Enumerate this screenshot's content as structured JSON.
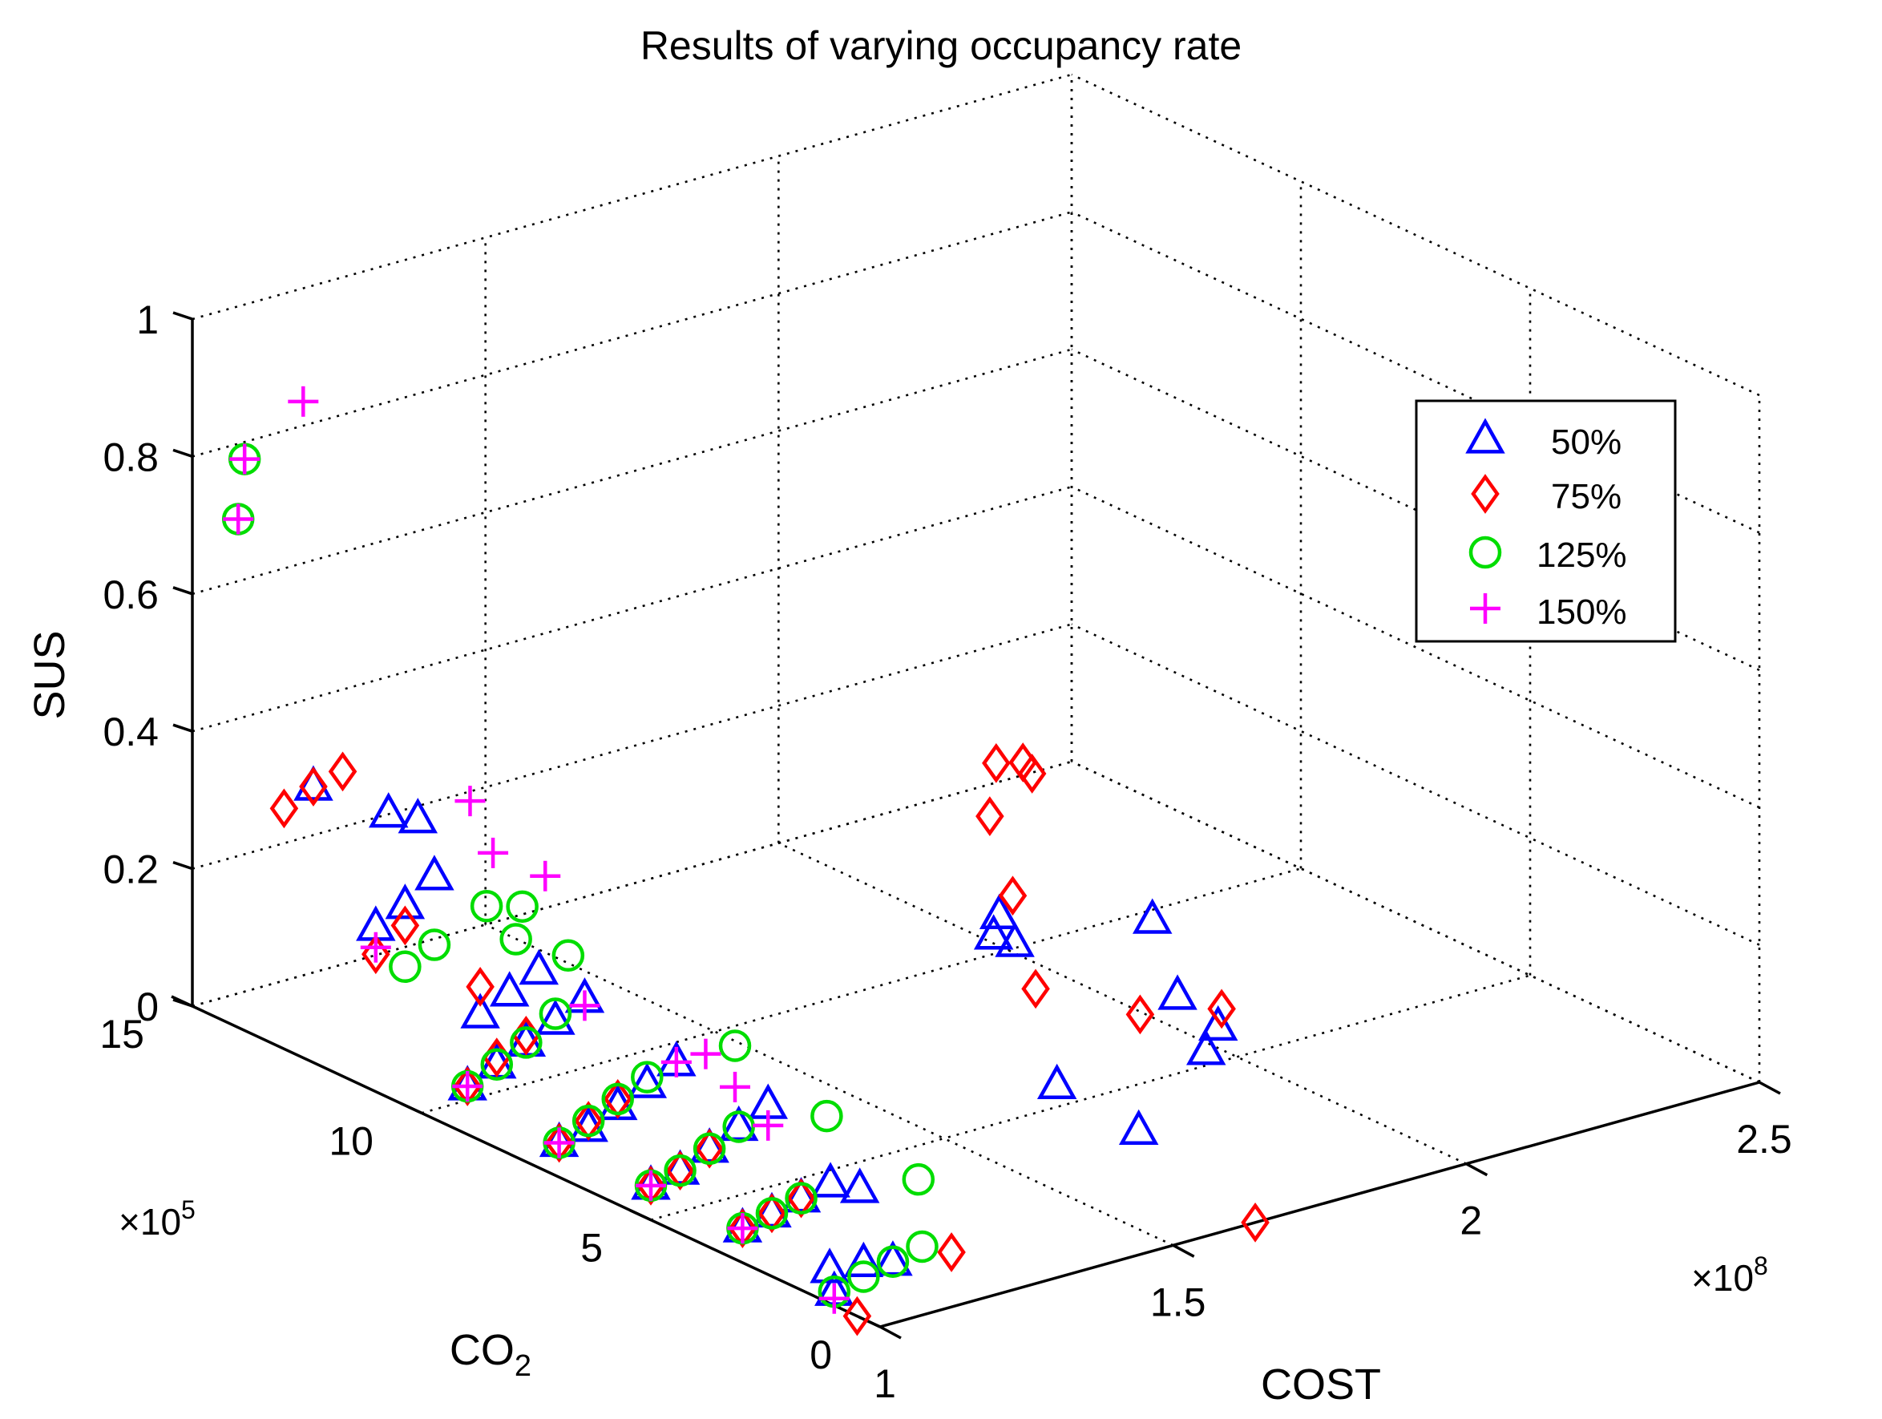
{
  "chart_data": {
    "type": "scatter",
    "title": "Results of varying occupancy rate",
    "xlabel": "COST",
    "ylabel": "CO",
    "ylabel_subscript": "2",
    "zlabel": "SUS",
    "xlim": [
      1,
      2.5
    ],
    "ylim": [
      0,
      15
    ],
    "zlim": [
      0,
      1
    ],
    "x_ticks": [
      "1",
      "1.5",
      "2",
      "2.5"
    ],
    "y_ticks": [
      "0",
      "5",
      "10",
      "15"
    ],
    "z_ticks": [
      "0",
      "0.2",
      "0.4",
      "0.6",
      "0.8",
      "1"
    ],
    "x_multiplier": "×10",
    "x_multiplier_exp": "8",
    "y_multiplier": "×10",
    "y_multiplier_exp": "5",
    "grid": true,
    "legend_position": "top-right",
    "series": [
      {
        "name": "50%",
        "marker": "triangle",
        "color": "#0000ff",
        "points": [
          [
            1.64,
            0.81,
            0.26
          ],
          [
            1.62,
            1.44,
            0.29
          ],
          [
            1.65,
            1.2,
            0.21
          ],
          [
            1.6,
            2.03,
            0.08
          ],
          [
            1.57,
            3.43,
            0.11
          ],
          [
            1.61,
            1.86,
            0.39
          ],
          [
            1.52,
            3.71,
            0.32
          ],
          [
            1.52,
            4.05,
            0.35
          ],
          [
            1.53,
            4.3,
            0.31
          ],
          [
            1.0,
            1.0,
            0.02
          ],
          [
            1.0,
            1.1,
            0.05
          ],
          [
            1.05,
            1.0,
            0.05
          ],
          [
            1.1,
            1.0,
            0.04
          ],
          [
            1.0,
            3.0,
            0.05
          ],
          [
            1.05,
            3.0,
            0.06
          ],
          [
            1.1,
            3.0,
            0.07
          ],
          [
            1.15,
            3.0,
            0.08
          ],
          [
            1.2,
            3.0,
            0.06
          ],
          [
            1.0,
            5.0,
            0.05
          ],
          [
            1.05,
            5.0,
            0.06
          ],
          [
            1.1,
            5.0,
            0.08
          ],
          [
            1.15,
            5.0,
            0.1
          ],
          [
            1.2,
            5.0,
            0.12
          ],
          [
            1.0,
            7.0,
            0.05
          ],
          [
            1.05,
            7.0,
            0.06
          ],
          [
            1.1,
            7.0,
            0.08
          ],
          [
            1.15,
            7.0,
            0.1
          ],
          [
            1.2,
            7.0,
            0.12
          ],
          [
            1.0,
            9.0,
            0.07
          ],
          [
            1.05,
            9.0,
            0.09
          ],
          [
            1.1,
            9.0,
            0.11
          ],
          [
            1.15,
            9.0,
            0.13
          ],
          [
            1.2,
            9.0,
            0.15
          ],
          [
            1.0,
            11.0,
            0.24
          ],
          [
            1.05,
            11.0,
            0.26
          ],
          [
            1.1,
            11.0,
            0.29
          ],
          [
            1.05,
            13.0,
            0.37
          ],
          [
            1.1,
            12.0,
            0.35
          ],
          [
            1.15,
            12.0,
            0.33
          ],
          [
            1.1,
            10.0,
            0.12
          ],
          [
            1.15,
            10.0,
            0.14
          ],
          [
            1.2,
            10.0,
            0.16
          ]
        ]
      },
      {
        "name": "75%",
        "marker": "diamond",
        "color": "#ff0000",
        "points": [
          [
            1.64,
            0.0,
            0.0
          ],
          [
            1.5,
            4.0,
            0.5
          ],
          [
            1.55,
            4.5,
            0.55
          ],
          [
            1.58,
            4.3,
            0.55
          ],
          [
            1.58,
            4.1,
            0.54
          ],
          [
            1.5,
            3.5,
            0.4
          ],
          [
            1.5,
            3.0,
            0.28
          ],
          [
            1.6,
            2.0,
            0.25
          ],
          [
            1.7,
            1.5,
            0.25
          ],
          [
            1.0,
            0.5,
            0.0
          ],
          [
            1.2,
            1.0,
            0.03
          ],
          [
            1.0,
            3.0,
            0.05
          ],
          [
            1.05,
            3.0,
            0.06
          ],
          [
            1.1,
            3.0,
            0.07
          ],
          [
            1.0,
            5.0,
            0.05
          ],
          [
            1.05,
            5.0,
            0.06
          ],
          [
            1.1,
            5.0,
            0.08
          ],
          [
            1.0,
            7.0,
            0.05
          ],
          [
            1.05,
            7.0,
            0.07
          ],
          [
            1.1,
            7.0,
            0.09
          ],
          [
            1.0,
            9.0,
            0.07
          ],
          [
            1.05,
            9.0,
            0.1
          ],
          [
            1.1,
            9.0,
            0.12
          ],
          [
            1.0,
            11.0,
            0.2
          ],
          [
            1.05,
            11.0,
            0.23
          ],
          [
            1.1,
            10.0,
            0.16
          ],
          [
            1.0,
            13.0,
            0.35
          ],
          [
            1.05,
            13.0,
            0.37
          ],
          [
            1.1,
            13.0,
            0.38
          ]
        ]
      },
      {
        "name": "125%",
        "marker": "circle",
        "color": "#00dd00",
        "points": [
          [
            1.0,
            14.0,
            0.74
          ],
          [
            1.05,
            14.5,
            0.8
          ],
          [
            1.15,
            10.5,
            0.25
          ],
          [
            1.0,
            1.0,
            0.02
          ],
          [
            1.05,
            1.0,
            0.03
          ],
          [
            1.1,
            1.0,
            0.04
          ],
          [
            1.15,
            1.0,
            0.05
          ],
          [
            1.0,
            3.0,
            0.05
          ],
          [
            1.05,
            3.0,
            0.06
          ],
          [
            1.1,
            3.0,
            0.07
          ],
          [
            1.0,
            5.0,
            0.05
          ],
          [
            1.05,
            5.0,
            0.06
          ],
          [
            1.1,
            5.0,
            0.08
          ],
          [
            1.15,
            5.0,
            0.1
          ],
          [
            1.0,
            7.0,
            0.05
          ],
          [
            1.05,
            7.0,
            0.07
          ],
          [
            1.1,
            7.0,
            0.09
          ],
          [
            1.15,
            7.0,
            0.11
          ],
          [
            1.0,
            9.0,
            0.07
          ],
          [
            1.05,
            9.0,
            0.09
          ],
          [
            1.1,
            9.0,
            0.11
          ],
          [
            1.15,
            9.0,
            0.14
          ],
          [
            1.05,
            11.0,
            0.17
          ],
          [
            1.1,
            11.0,
            0.19
          ],
          [
            1.3,
            5.0,
            0.08
          ],
          [
            1.3,
            3.0,
            0.05
          ],
          [
            1.3,
            7.0,
            0.12
          ],
          [
            1.25,
            10.0,
            0.17
          ],
          [
            1.2,
            10.5,
            0.19
          ],
          [
            1.25,
            11.0,
            0.21
          ]
        ]
      },
      {
        "name": "150%",
        "marker": "plus",
        "color": "#ff00ff",
        "points": [
          [
            1.0,
            14.0,
            0.74
          ],
          [
            1.05,
            14.5,
            0.8
          ],
          [
            1.15,
            14.5,
            0.86
          ],
          [
            1.2,
            11.5,
            0.36
          ],
          [
            1.2,
            11.0,
            0.3
          ],
          [
            1.25,
            10.5,
            0.27
          ],
          [
            1.3,
            7.0,
            0.06
          ],
          [
            1.0,
            1.0,
            0.01
          ],
          [
            1.0,
            3.0,
            0.05
          ],
          [
            1.0,
            5.0,
            0.05
          ],
          [
            1.0,
            7.0,
            0.05
          ],
          [
            1.0,
            9.0,
            0.07
          ],
          [
            1.0,
            11.0,
            0.21
          ],
          [
            1.2,
            7.0,
            0.12
          ],
          [
            1.2,
            5.0,
            0.09
          ],
          [
            1.2,
            9.0,
            0.14
          ],
          [
            1.25,
            7.0,
            0.12
          ]
        ]
      }
    ]
  }
}
